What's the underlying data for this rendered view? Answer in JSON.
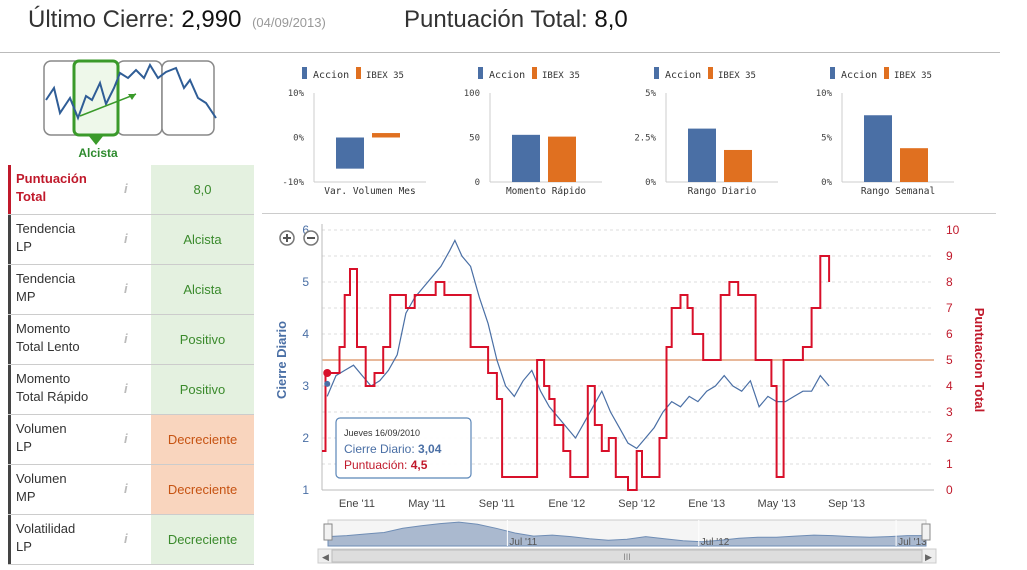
{
  "header": {
    "last_close_label": "Último Cierre:",
    "last_close_value": "2,990",
    "last_close_date": "(04/09/2013)",
    "total_score_label": "Puntuación Total:",
    "total_score_value": "8,0"
  },
  "trend": {
    "label": "Alcista"
  },
  "scores": [
    {
      "label_line1": "Puntuación",
      "label_line2": "Total",
      "value": "8,0",
      "status": "green"
    },
    {
      "label_line1": "Tendencia",
      "label_line2": "LP",
      "value": "Alcista",
      "status": "green"
    },
    {
      "label_line1": "Tendencia",
      "label_line2": "MP",
      "value": "Alcista",
      "status": "green"
    },
    {
      "label_line1": "Momento",
      "label_line2": "Total Lento",
      "value": "Positivo",
      "status": "green"
    },
    {
      "label_line1": "Momento",
      "label_line2": "Total Rápido",
      "value": "Positivo",
      "status": "green"
    },
    {
      "label_line1": "Volumen",
      "label_line2": "LP",
      "value": "Decreciente",
      "status": "orange"
    },
    {
      "label_line1": "Volumen",
      "label_line2": "MP",
      "value": "Decreciente",
      "status": "orange"
    },
    {
      "label_line1": "Volatilidad",
      "label_line2": "LP",
      "value": "Decreciente",
      "status": "green"
    }
  ],
  "info_glyph": "i",
  "colors": {
    "accion": "#4a6fa5",
    "ibex": "#e07020",
    "score_line": "#d8102a",
    "price_line": "#4a6fa5",
    "ref_line": "#e8b89a",
    "green_bg": "#e4f1e0",
    "orange_bg": "#f9d5be"
  },
  "chart_data": [
    {
      "type": "bar",
      "title": "Var. Volumen Mes",
      "legend": [
        "Accion",
        "IBEX 35"
      ],
      "series": [
        {
          "name": "Accion",
          "values": [
            -7
          ]
        },
        {
          "name": "IBEX 35",
          "values": [
            1
          ]
        }
      ],
      "yticks": [
        "10%",
        "0%",
        "-10%"
      ],
      "ylim": [
        -10,
        10
      ]
    },
    {
      "type": "bar",
      "title": "Momento Rápido",
      "legend": [
        "Accion",
        "IBEX 35"
      ],
      "series": [
        {
          "name": "Accion",
          "values": [
            53
          ]
        },
        {
          "name": "IBEX 35",
          "values": [
            51
          ]
        }
      ],
      "yticks": [
        "100",
        "50",
        "0"
      ],
      "ylim": [
        0,
        100
      ]
    },
    {
      "type": "bar",
      "title": "Rango Diario",
      "legend": [
        "Accion",
        "IBEX 35"
      ],
      "series": [
        {
          "name": "Accion",
          "values": [
            3.0
          ]
        },
        {
          "name": "IBEX 35",
          "values": [
            1.8
          ]
        }
      ],
      "yticks": [
        "5%",
        "2.5%",
        "0%"
      ],
      "ylim": [
        0,
        5
      ]
    },
    {
      "type": "bar",
      "title": "Rango Semanal",
      "legend": [
        "Accion",
        "IBEX 35"
      ],
      "series": [
        {
          "name": "Accion",
          "values": [
            7.5
          ]
        },
        {
          "name": "IBEX 35",
          "values": [
            3.8
          ]
        }
      ],
      "yticks": [
        "10%",
        "5%",
        "0%"
      ],
      "ylim": [
        0,
        10
      ]
    },
    {
      "type": "line",
      "ylabel_left": "Cierre Diario",
      "ylabel_right": "Puntuacion Total",
      "y_left_ticks": [
        "1",
        "2",
        "3",
        "4",
        "5",
        "6"
      ],
      "y_left_range": [
        1,
        6
      ],
      "y_right_ticks": [
        "0",
        "1",
        "2",
        "3",
        "4",
        "5",
        "6",
        "7",
        "8",
        "9",
        "10"
      ],
      "y_right_range": [
        0,
        10
      ],
      "x_range": [
        0,
        35
      ],
      "x_ticks": [
        {
          "x": 2,
          "label": "Ene '11"
        },
        {
          "x": 6,
          "label": "May '11"
        },
        {
          "x": 10,
          "label": "Sep '11"
        },
        {
          "x": 14,
          "label": "Ene '12"
        },
        {
          "x": 18,
          "label": "Sep '12"
        },
        {
          "x": 22,
          "label": "Ene '13"
        },
        {
          "x": 26,
          "label": "May '13"
        },
        {
          "x": 30,
          "label": "Sep '13"
        }
      ],
      "reference_level_right": 5,
      "series": [
        {
          "name": "Cierre Diario",
          "points": [
            [
              0.3,
              2.8
            ],
            [
              0.8,
              3.2
            ],
            [
              1.3,
              3.3
            ],
            [
              1.8,
              3.4
            ],
            [
              2.3,
              3.2
            ],
            [
              2.8,
              3.0
            ],
            [
              3.3,
              3.1
            ],
            [
              3.8,
              3.3
            ],
            [
              4.3,
              3.6
            ],
            [
              4.8,
              4.4
            ],
            [
              5.3,
              4.7
            ],
            [
              5.8,
              4.9
            ],
            [
              6.3,
              5.1
            ],
            [
              6.8,
              5.3
            ],
            [
              7.3,
              5.6
            ],
            [
              7.6,
              5.8
            ],
            [
              8.0,
              5.5
            ],
            [
              8.5,
              5.3
            ],
            [
              9.0,
              4.7
            ],
            [
              9.5,
              4.2
            ],
            [
              10.0,
              3.5
            ],
            [
              10.5,
              3.0
            ],
            [
              11.0,
              2.8
            ],
            [
              11.5,
              3.1
            ],
            [
              12.0,
              3.3
            ],
            [
              12.5,
              2.9
            ],
            [
              13.0,
              2.6
            ],
            [
              13.5,
              2.4
            ],
            [
              14.0,
              2.2
            ],
            [
              14.5,
              2.0
            ],
            [
              15.0,
              2.3
            ],
            [
              15.5,
              2.6
            ],
            [
              16.0,
              2.9
            ],
            [
              16.5,
              2.5
            ],
            [
              17.0,
              2.2
            ],
            [
              17.5,
              1.9
            ],
            [
              18.0,
              1.8
            ],
            [
              18.5,
              2.0
            ],
            [
              19.0,
              2.2
            ],
            [
              19.5,
              2.5
            ],
            [
              20.0,
              2.7
            ],
            [
              20.5,
              2.6
            ],
            [
              21.0,
              2.8
            ],
            [
              21.5,
              2.7
            ],
            [
              22.0,
              2.9
            ],
            [
              22.5,
              3.0
            ],
            [
              23.0,
              3.2
            ],
            [
              23.5,
              3.0
            ],
            [
              24.0,
              2.9
            ],
            [
              24.5,
              3.1
            ],
            [
              25.0,
              2.6
            ],
            [
              25.5,
              2.8
            ],
            [
              26.0,
              2.7
            ],
            [
              26.5,
              2.7
            ],
            [
              27.0,
              2.8
            ],
            [
              27.5,
              2.9
            ],
            [
              28.0,
              2.9
            ],
            [
              28.5,
              3.2
            ],
            [
              29.0,
              3.0
            ]
          ]
        },
        {
          "name": "Puntuacion Total",
          "points": [
            [
              0,
              1.5
            ],
            [
              0.2,
              4.5
            ],
            [
              0.8,
              4.5
            ],
            [
              1.0,
              5.5
            ],
            [
              1.3,
              7.5
            ],
            [
              1.6,
              8.5
            ],
            [
              2.0,
              5.5
            ],
            [
              2.5,
              4.0
            ],
            [
              3.0,
              4.5
            ],
            [
              3.5,
              5.5
            ],
            [
              3.9,
              7.5
            ],
            [
              4.3,
              7.5
            ],
            [
              4.8,
              7.0
            ],
            [
              5.3,
              7.5
            ],
            [
              5.8,
              7.5
            ],
            [
              6.5,
              8.0
            ],
            [
              7.0,
              7.5
            ],
            [
              7.5,
              7.5
            ],
            [
              8.0,
              7.5
            ],
            [
              8.5,
              5.5
            ],
            [
              9.0,
              5.5
            ],
            [
              9.5,
              4.5
            ],
            [
              10.0,
              3.5
            ],
            [
              10.3,
              0.5
            ],
            [
              11.0,
              0.5
            ],
            [
              11.5,
              0.5
            ],
            [
              12.0,
              0.5
            ],
            [
              12.3,
              5.0
            ],
            [
              12.7,
              4.0
            ],
            [
              13.0,
              3.5
            ],
            [
              13.3,
              2.5
            ],
            [
              13.8,
              1.5
            ],
            [
              14.2,
              0.5
            ],
            [
              14.8,
              0.5
            ],
            [
              15.2,
              4.0
            ],
            [
              15.6,
              2.5
            ],
            [
              16.0,
              1.5
            ],
            [
              16.4,
              2.0
            ],
            [
              16.8,
              0.5
            ],
            [
              17.5,
              0.0
            ],
            [
              18.0,
              1.5
            ],
            [
              18.3,
              0.5
            ],
            [
              19.0,
              0.5
            ],
            [
              19.3,
              2.0
            ],
            [
              19.7,
              5.5
            ],
            [
              20.0,
              7.0
            ],
            [
              20.5,
              7.5
            ],
            [
              20.9,
              7.0
            ],
            [
              21.2,
              6.0
            ],
            [
              21.5,
              6.0
            ],
            [
              21.8,
              5.0
            ],
            [
              22.3,
              5.0
            ],
            [
              22.8,
              7.5
            ],
            [
              23.3,
              8.0
            ],
            [
              23.8,
              7.5
            ],
            [
              24.3,
              7.5
            ],
            [
              24.8,
              5.0
            ],
            [
              25.2,
              5.0
            ],
            [
              25.7,
              4.0
            ],
            [
              26.0,
              0.5
            ],
            [
              26.4,
              5.0
            ],
            [
              27.0,
              5.0
            ],
            [
              27.5,
              5.5
            ],
            [
              28.0,
              7.0
            ],
            [
              28.5,
              9.0
            ],
            [
              29.0,
              8.0
            ]
          ]
        }
      ],
      "tooltip": {
        "date": "Jueves 16/09/2010",
        "close_label": "Cierre Diario:",
        "close_value": "3,04",
        "score_label": "Puntuación:",
        "score_value": "4,5"
      }
    },
    {
      "type": "area",
      "title": "navigator",
      "x_ticks": [
        {
          "x": 0.3,
          "label": "Jul '11"
        },
        {
          "x": 0.62,
          "label": "Jul '12"
        },
        {
          "x": 0.95,
          "label": "Jul '13"
        }
      ],
      "values": [
        2.8,
        3.0,
        3.3,
        3.6,
        4.4,
        4.9,
        5.3,
        5.6,
        5.2,
        4.4,
        3.5,
        2.9,
        3.1,
        2.8,
        2.4,
        2.1,
        2.3,
        2.8,
        2.4,
        2.0,
        1.8,
        2.1,
        2.5,
        2.7,
        2.7,
        2.9,
        3.1,
        3.0,
        2.8,
        2.7,
        2.8,
        3.0,
        3.0
      ]
    }
  ]
}
